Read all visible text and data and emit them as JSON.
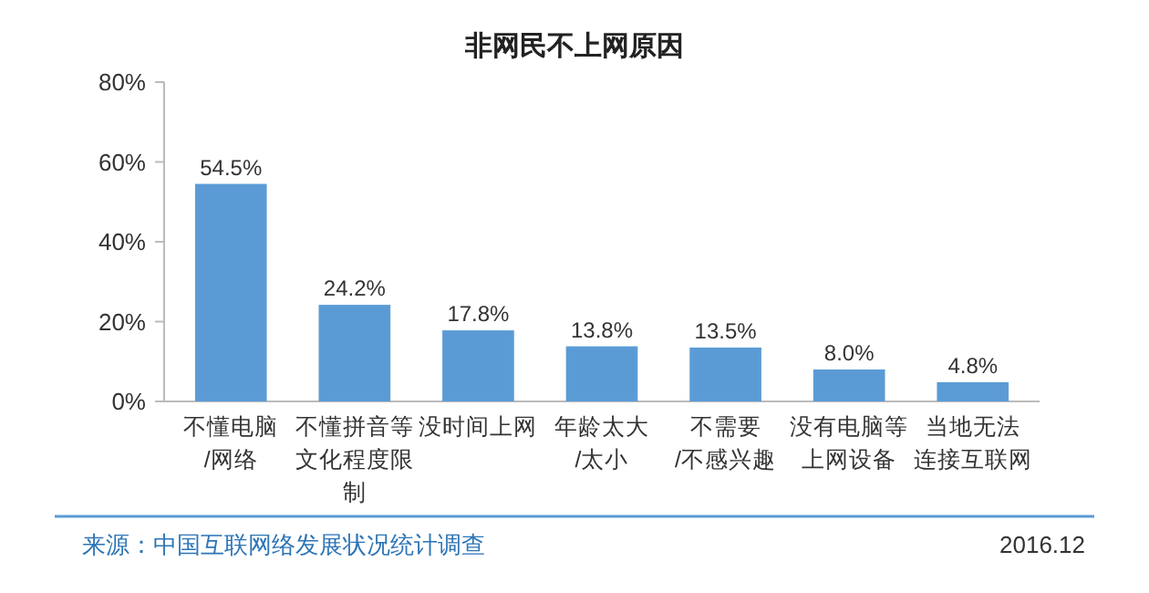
{
  "chart_data": {
    "type": "bar",
    "title": "非网民不上网原因",
    "categories": [
      "不懂电脑/网络",
      "不懂拼音等文化程度限制",
      "没时间上网",
      "年龄太大/太小",
      "不需要/不感兴趣",
      "没有电脑等上网设备",
      "当地无法连接互联网"
    ],
    "values": [
      54.5,
      24.2,
      17.8,
      13.8,
      13.5,
      8.0,
      4.8
    ],
    "value_labels": [
      "54.5%",
      "24.2%",
      "17.8%",
      "13.8%",
      "13.5%",
      "8.0%",
      "4.8%"
    ],
    "color": "#5b9bd5",
    "ylim": [
      0,
      80
    ],
    "yticks": [
      {
        "value": 0,
        "label": "0%"
      },
      {
        "value": 20,
        "label": "20%"
      },
      {
        "value": 40,
        "label": "40%"
      },
      {
        "value": 60,
        "label": "60%"
      },
      {
        "value": 80,
        "label": "80%"
      }
    ],
    "annotations": [
      "来源：中国互联网络发展状况统计调查",
      "2016.12"
    ]
  }
}
